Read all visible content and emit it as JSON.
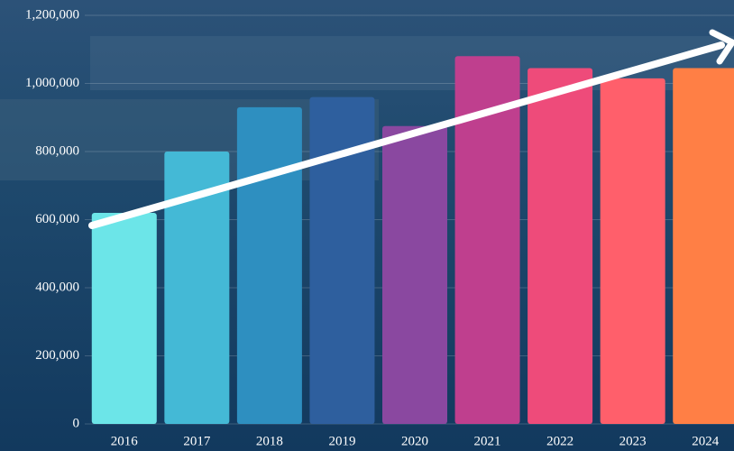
{
  "chart_data": {
    "type": "bar",
    "categories": [
      "2016",
      "2017",
      "2018",
      "2019",
      "2020",
      "2021",
      "2022",
      "2023",
      "2024"
    ],
    "values": [
      620000,
      800000,
      930000,
      960000,
      875000,
      1080000,
      1045000,
      1015000,
      1045000
    ],
    "colors": [
      "#6ce5e8",
      "#44b9d6",
      "#2e8fc0",
      "#2e5f9e",
      "#8a48a0",
      "#bf3f8e",
      "#ee4b7a",
      "#ff5f6b",
      "#ff7f45"
    ],
    "ylim": [
      0,
      1200000
    ],
    "yticks": [
      0,
      {
        "value": 200000,
        "label": "200,000"
      },
      {
        "value": 400000,
        "label": "400,000"
      },
      {
        "value": 600000,
        "label": "600,000"
      },
      {
        "value": 800000,
        "label": "800,000"
      },
      {
        "value": 1000000,
        "label": "1,000,000"
      },
      {
        "value": 1200000,
        "label": "1,200,000"
      }
    ],
    "grid": true
  }
}
